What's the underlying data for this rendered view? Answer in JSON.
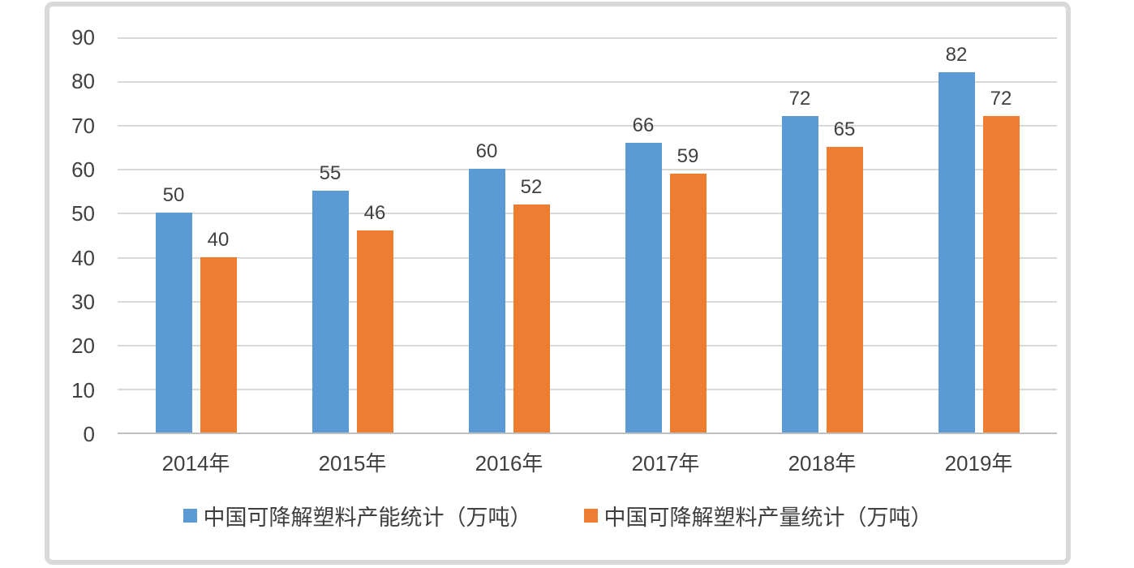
{
  "chart_data": {
    "type": "bar",
    "title": "",
    "categories": [
      "2014年",
      "2015年",
      "2016年",
      "2017年",
      "2018年",
      "2019年"
    ],
    "series": [
      {
        "name": "中国可降解塑料产能统计（万吨）",
        "color": "#5B9BD5",
        "values": [
          50,
          55,
          60,
          66,
          72,
          82
        ]
      },
      {
        "name": "中国可降解塑料产量统计（万吨）",
        "color": "#ED7D31",
        "values": [
          40,
          46,
          52,
          59,
          65,
          72
        ]
      }
    ],
    "xlabel": "",
    "ylabel": "",
    "ylim": [
      0,
      90
    ],
    "yticks": [
      0,
      10,
      20,
      30,
      40,
      50,
      60,
      70,
      80,
      90
    ],
    "grid": "horizontal",
    "gridline_color": "#d9d9d9",
    "axis_line_color": "#bfbfbf",
    "label_color": "#404040",
    "frame_border_color": "#d9d9d9",
    "data_labels": true,
    "legend_position": "bottom"
  }
}
